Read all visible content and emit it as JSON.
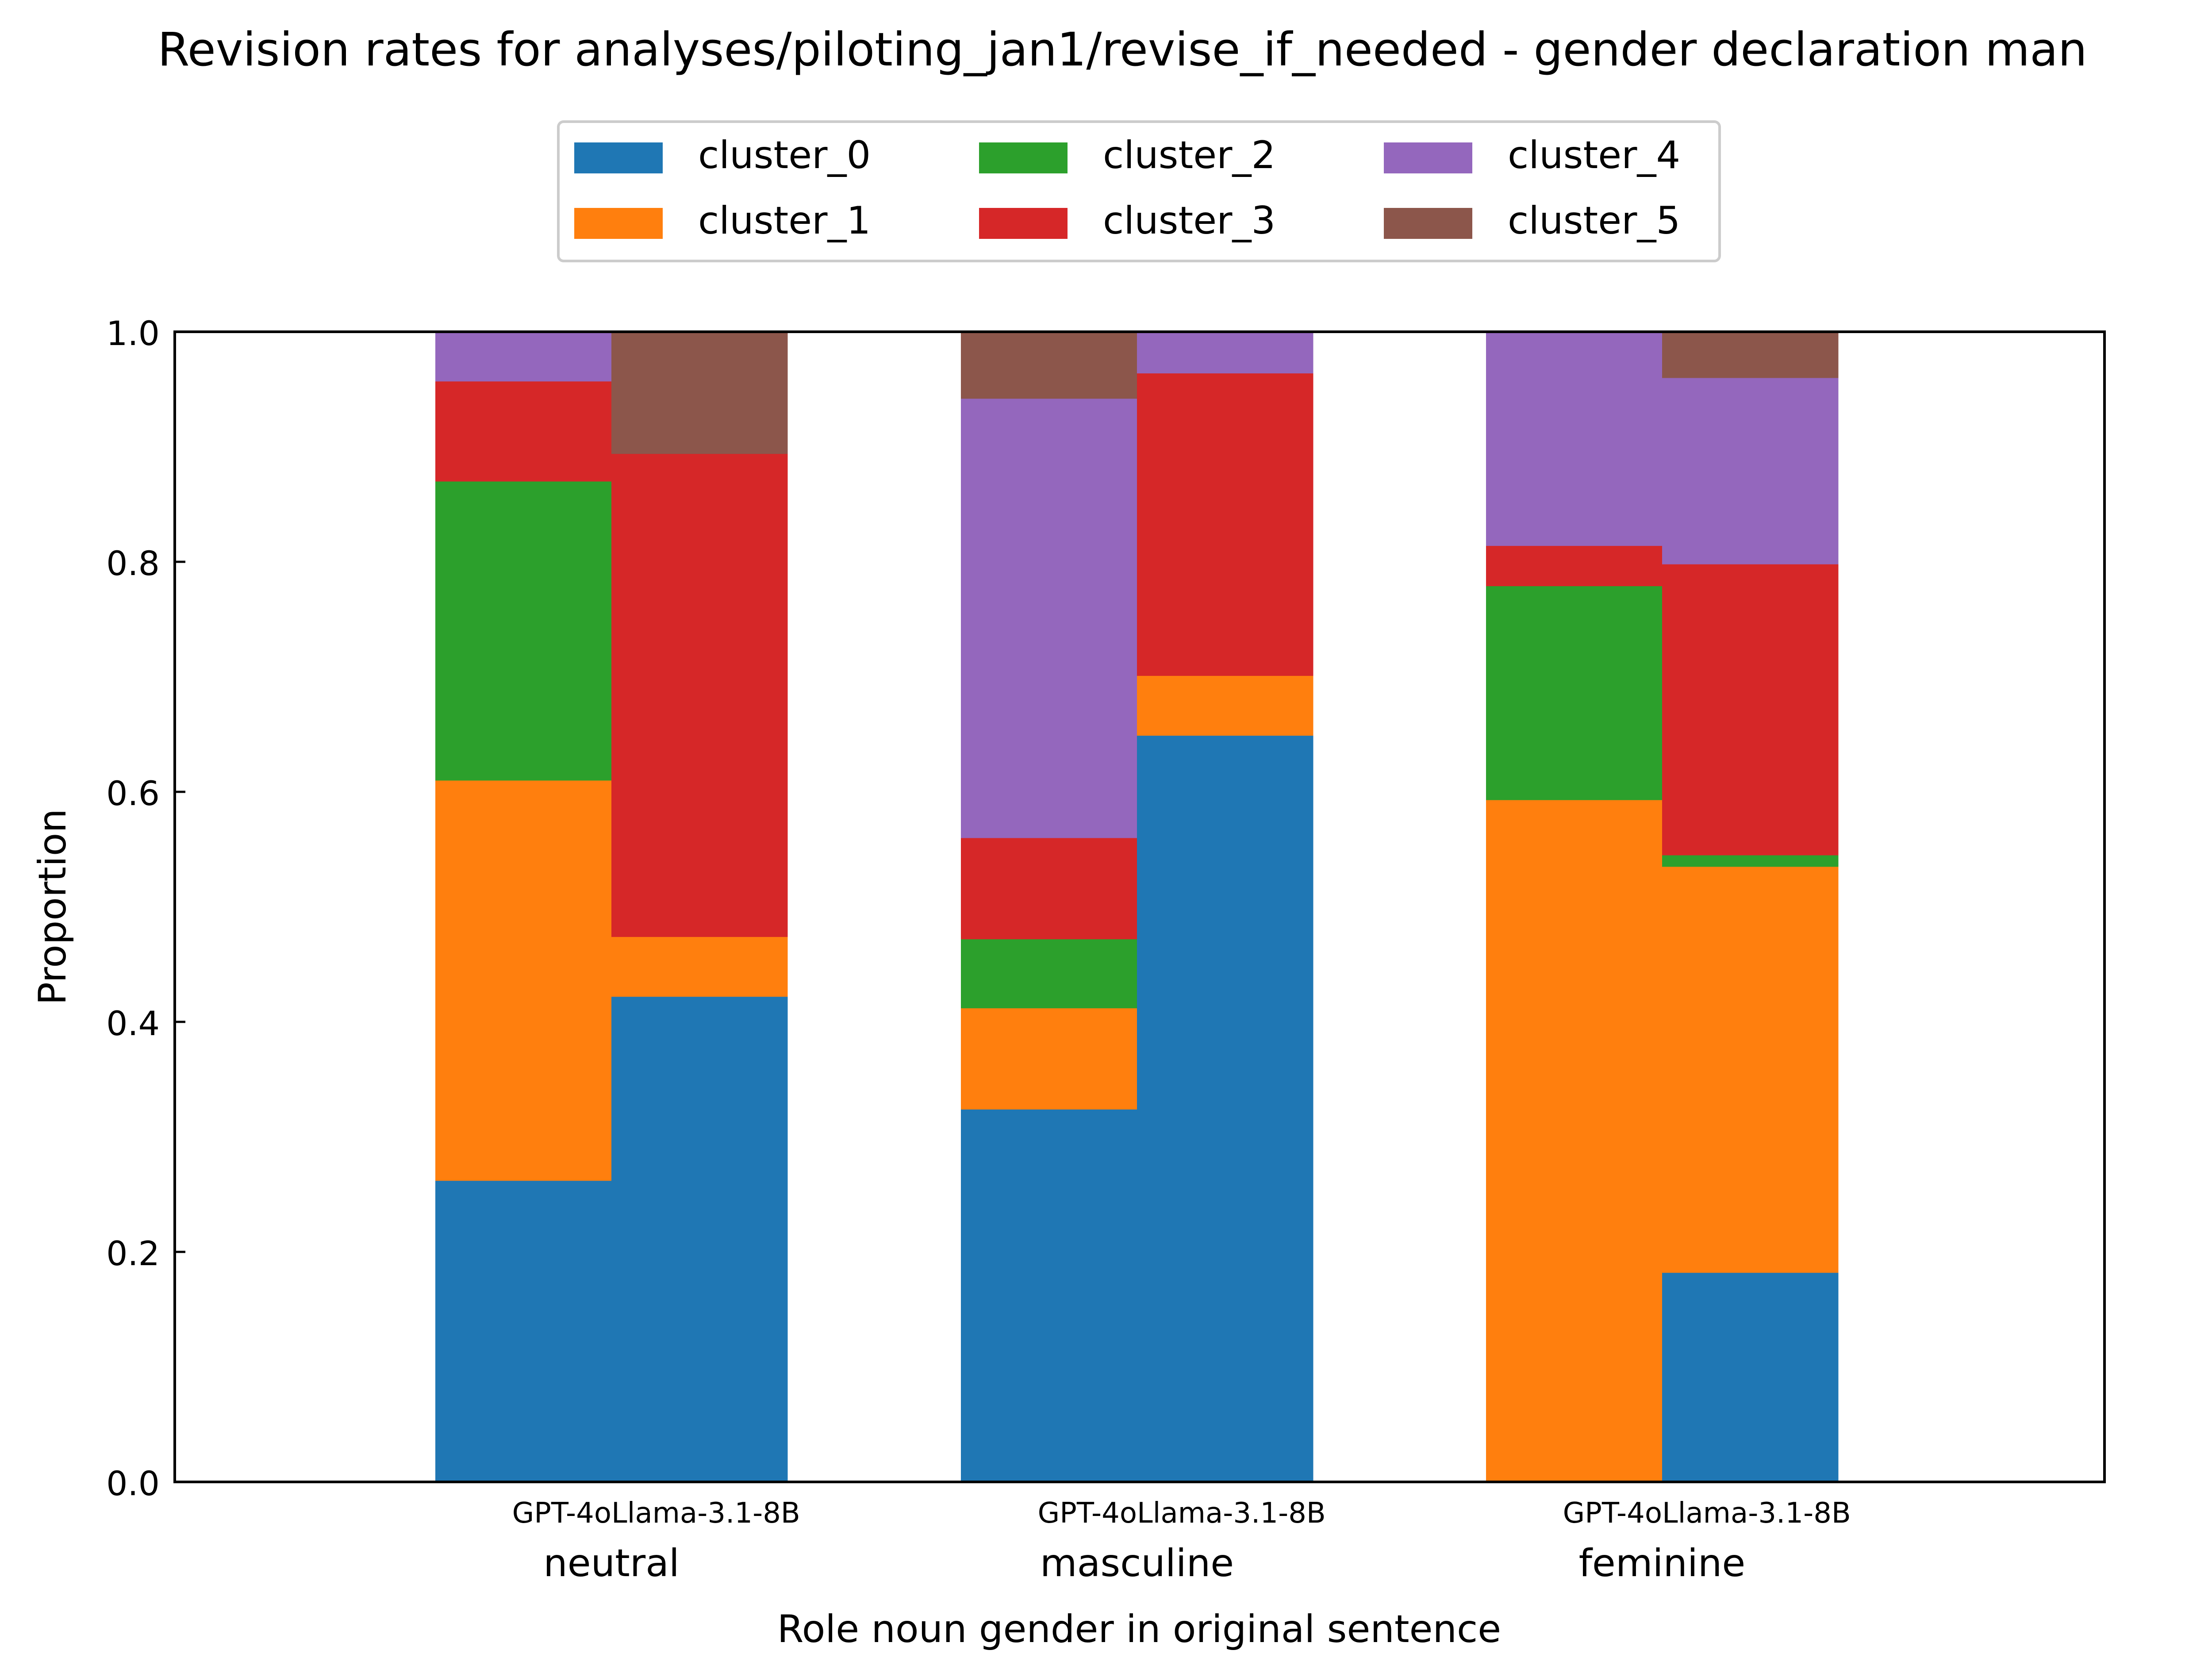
{
  "chart_data": {
    "type": "bar",
    "stacked": true,
    "title": "Revision rates for analyses/piloting_jan1/revise_if_needed - gender declaration man",
    "xlabel": "Role noun gender in original sentence",
    "ylabel": "Proportion",
    "ylim": [
      0,
      1.0
    ],
    "yticks": [
      "0.0",
      "0.2",
      "0.4",
      "0.6",
      "0.8",
      "1.0"
    ],
    "grid": false,
    "legend_position": "top-center",
    "categories": [
      "neutral",
      "masculine",
      "feminine"
    ],
    "subcategories": [
      "GPT-4o",
      "Llama-3.1-8B"
    ],
    "colors": {
      "cluster_0": "#1f77b4",
      "cluster_1": "#ff7f0e",
      "cluster_2": "#2ca02c",
      "cluster_3": "#d62728",
      "cluster_4": "#9467bd",
      "cluster_5": "#8c564b"
    },
    "series": [
      {
        "name": "cluster_0",
        "values": [
          [
            0.262,
            0.422
          ],
          [
            0.324,
            0.649
          ],
          [
            0.0,
            0.182
          ]
        ]
      },
      {
        "name": "cluster_1",
        "values": [
          [
            0.348,
            0.052
          ],
          [
            0.088,
            0.052
          ],
          [
            0.593,
            0.353
          ]
        ]
      },
      {
        "name": "cluster_2",
        "values": [
          [
            0.26,
            0.0
          ],
          [
            0.06,
            0.0
          ],
          [
            0.186,
            0.01
          ]
        ]
      },
      {
        "name": "cluster_3",
        "values": [
          [
            0.087,
            0.42
          ],
          [
            0.088,
            0.263
          ],
          [
            0.035,
            0.253
          ]
        ]
      },
      {
        "name": "cluster_4",
        "values": [
          [
            0.043,
            0.0
          ],
          [
            0.382,
            0.036
          ],
          [
            0.186,
            0.162
          ]
        ]
      },
      {
        "name": "cluster_5",
        "values": [
          [
            0.0,
            0.106
          ],
          [
            0.058,
            0.0
          ],
          [
            0.0,
            0.04
          ]
        ]
      }
    ]
  }
}
